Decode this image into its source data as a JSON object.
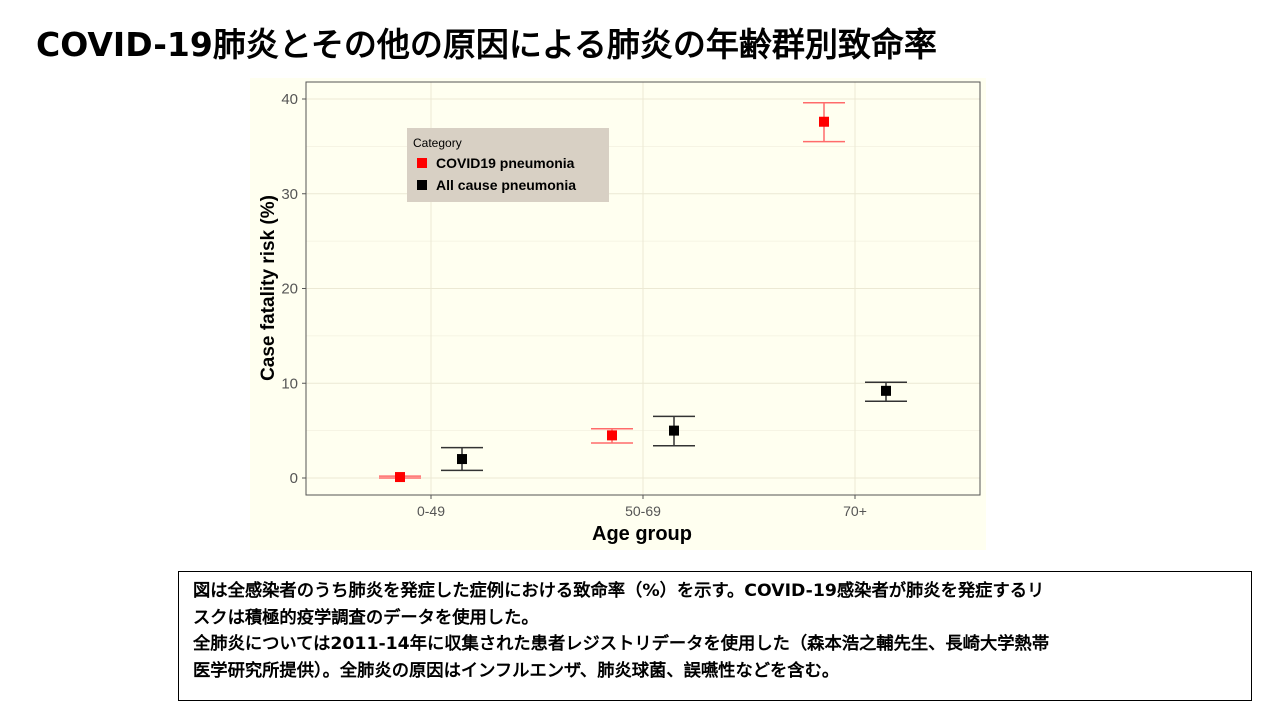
{
  "slide": {
    "title": "COVID-19肺炎とその他の原因による肺炎の年齢群別致命率"
  },
  "chart_data": {
    "type": "scatter",
    "xlabel": "Age group",
    "ylabel": "Case fatality risk (%)",
    "categories": [
      "0-49",
      "50-69",
      "70+"
    ],
    "ylim": [
      0,
      40
    ],
    "yticks": [
      0,
      10,
      20,
      30,
      40
    ],
    "legend": {
      "title": "Category",
      "placement": "top-left"
    },
    "series": [
      {
        "name": "COVID19 pneumonia",
        "color": "#ff0000",
        "values": [
          0.1,
          4.5,
          37.6
        ],
        "error_low": [
          0.0,
          3.7,
          35.5
        ],
        "error_high": [
          0.2,
          5.2,
          39.6
        ]
      },
      {
        "name": "All cause pneumonia",
        "color": "#000000",
        "values": [
          2.0,
          5.0,
          9.2
        ],
        "error_low": [
          0.8,
          3.4,
          8.1
        ],
        "error_high": [
          3.2,
          6.5,
          10.1
        ]
      }
    ],
    "background_color": "#fffff0",
    "grid": true
  },
  "caption": {
    "lines": [
      "図は全感染者のうち肺炎を発症した症例における致命率（%）を示す。COVID-19感染者が肺炎を発症するリ",
      "スクは積極的疫学調査のデータを使用した。",
      "全肺炎については2011-14年に収集された患者レジストリデータを使用した（森本浩之輔先生、長崎大学熱帯",
      "医学研究所提供）。全肺炎の原因はインフルエンザ、肺炎球菌、誤嚥性などを含む。"
    ]
  }
}
